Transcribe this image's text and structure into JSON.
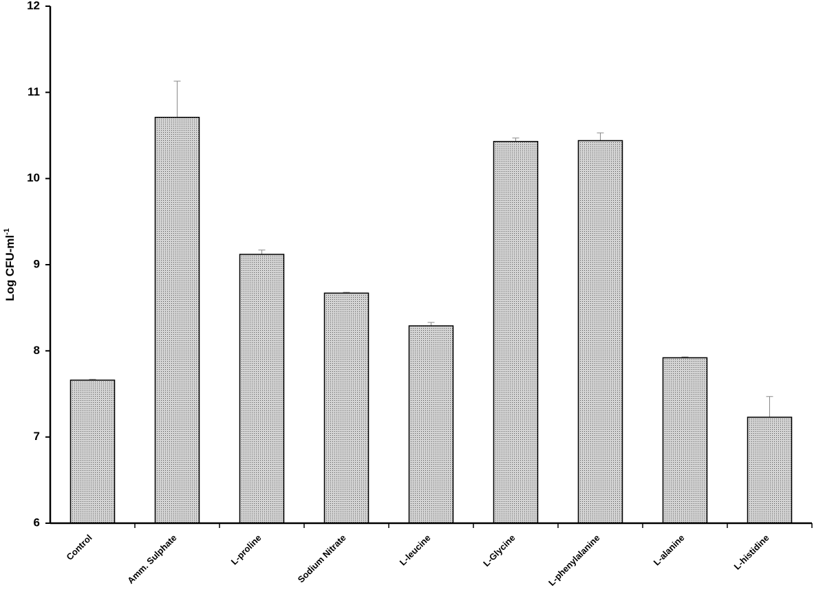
{
  "chart_data": {
    "type": "bar",
    "y_label": "Log CFU-ml",
    "y_label_superscript": "-1",
    "categories": [
      "Control",
      "Amm. Sulphate",
      "L-proline",
      "Sodium Nitrate",
      "L-leucine",
      "L-Glycine",
      "L-phenylalanine",
      "L-alanine",
      "L-histidine"
    ],
    "values": [
      7.66,
      10.71,
      9.12,
      8.67,
      8.29,
      10.43,
      10.44,
      7.92,
      7.23
    ],
    "errors": [
      0.01,
      0.42,
      0.05,
      0.01,
      0.04,
      0.04,
      0.09,
      0.01,
      0.24
    ],
    "color": "#d4d4d4",
    "ylim": [
      6,
      12
    ],
    "yticks": [
      6,
      7,
      8,
      9,
      10,
      11,
      12
    ],
    "grid": false
  }
}
